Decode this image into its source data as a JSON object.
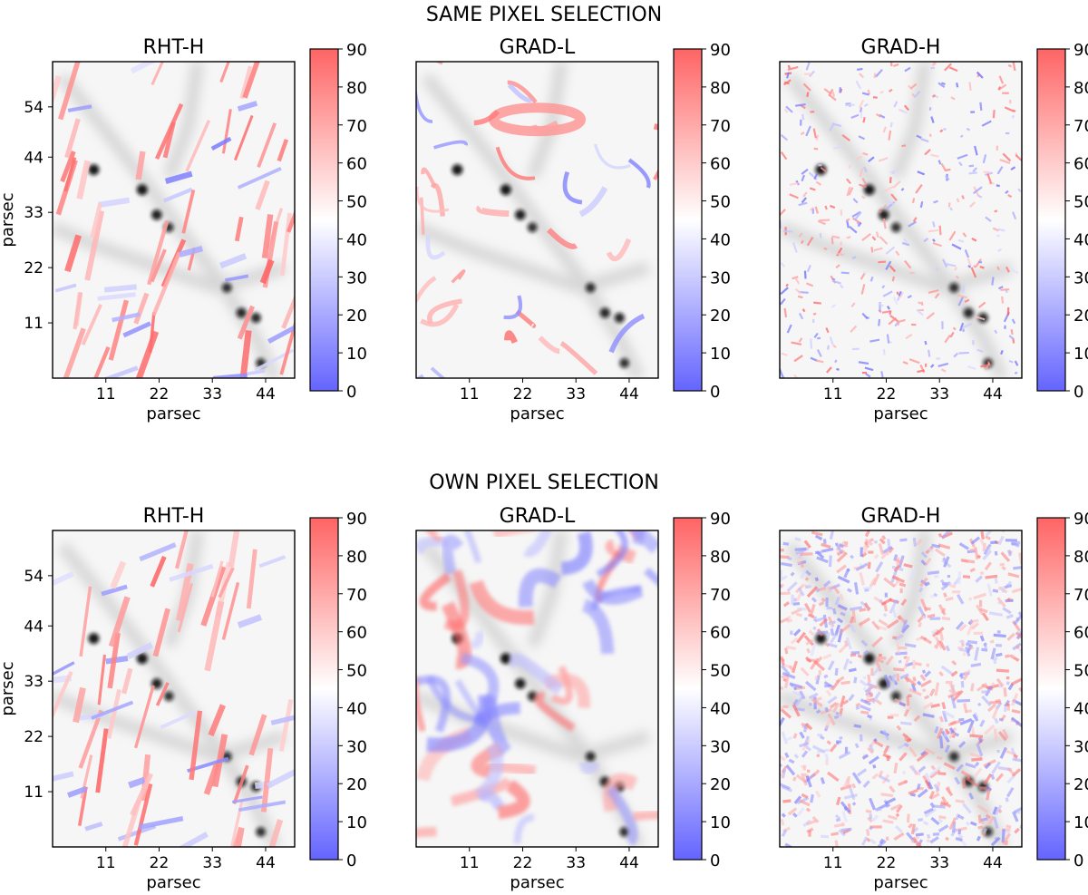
{
  "figure": {
    "row_titles": [
      "SAME PIXEL SELECTION",
      "OWN PIXEL SELECTION"
    ]
  },
  "colorbar": {
    "ticks": [
      0,
      10,
      20,
      30,
      40,
      50,
      60,
      70,
      80,
      90
    ],
    "range": [
      0,
      90
    ],
    "colormap": "bwr",
    "colors": {
      "low": "#5c5cff",
      "mid": "#ffffff",
      "high": "#ff5c5c"
    }
  },
  "chart_data": [
    {
      "row": 0,
      "col": 0,
      "type": "heatmap",
      "title": "RHT-H",
      "xlabel": "parsec",
      "ylabel": "parsec",
      "xticks": [
        11,
        22,
        33,
        44
      ],
      "yticks": [
        11,
        22,
        33,
        44,
        54
      ],
      "xlim": [
        0,
        50
      ],
      "ylim": [
        0,
        63
      ],
      "cmap": "bwr",
      "vmin": 0,
      "vmax": 90
    },
    {
      "row": 0,
      "col": 1,
      "type": "heatmap",
      "title": "GRAD-L",
      "xlabel": "parsec",
      "ylabel": "",
      "xticks": [
        11,
        22,
        33,
        44
      ],
      "yticks": [],
      "xlim": [
        0,
        50
      ],
      "ylim": [
        0,
        63
      ],
      "cmap": "bwr",
      "vmin": 0,
      "vmax": 90
    },
    {
      "row": 0,
      "col": 2,
      "type": "heatmap",
      "title": "GRAD-H",
      "xlabel": "parsec",
      "ylabel": "",
      "xticks": [
        11,
        22,
        33,
        44
      ],
      "yticks": [],
      "xlim": [
        0,
        50
      ],
      "ylim": [
        0,
        63
      ],
      "cmap": "bwr",
      "vmin": 0,
      "vmax": 90
    },
    {
      "row": 1,
      "col": 0,
      "type": "heatmap",
      "title": "RHT-H",
      "xlabel": "parsec",
      "ylabel": "parsec",
      "xticks": [
        11,
        22,
        33,
        44
      ],
      "yticks": [
        11,
        22,
        33,
        44,
        54
      ],
      "xlim": [
        0,
        50
      ],
      "ylim": [
        0,
        63
      ],
      "cmap": "bwr",
      "vmin": 0,
      "vmax": 90
    },
    {
      "row": 1,
      "col": 1,
      "type": "heatmap",
      "title": "GRAD-L",
      "xlabel": "parsec",
      "ylabel": "",
      "xticks": [
        11,
        22,
        33,
        44
      ],
      "yticks": [],
      "xlim": [
        0,
        50
      ],
      "ylim": [
        0,
        63
      ],
      "cmap": "bwr",
      "vmin": 0,
      "vmax": 90
    },
    {
      "row": 1,
      "col": 2,
      "type": "heatmap",
      "title": "GRAD-H",
      "xlabel": "parsec",
      "ylabel": "",
      "xticks": [
        11,
        22,
        33,
        44
      ],
      "yticks": [],
      "xlim": [
        0,
        50
      ],
      "ylim": [
        0,
        63
      ],
      "cmap": "bwr",
      "vmin": 0,
      "vmax": 90
    }
  ],
  "background_map": {
    "description_units": "parsec",
    "dense_cores": [
      {
        "x": 8.5,
        "y": 41.5,
        "strength": 1.0
      },
      {
        "x": 18.5,
        "y": 37.5,
        "strength": 1.0
      },
      {
        "x": 21.5,
        "y": 32.5,
        "strength": 0.9
      },
      {
        "x": 24,
        "y": 30,
        "strength": 0.7
      },
      {
        "x": 36,
        "y": 18,
        "strength": 0.7
      },
      {
        "x": 39,
        "y": 13,
        "strength": 0.8
      },
      {
        "x": 42,
        "y": 12,
        "strength": 0.8
      },
      {
        "x": 43,
        "y": 3,
        "strength": 0.7
      }
    ]
  }
}
